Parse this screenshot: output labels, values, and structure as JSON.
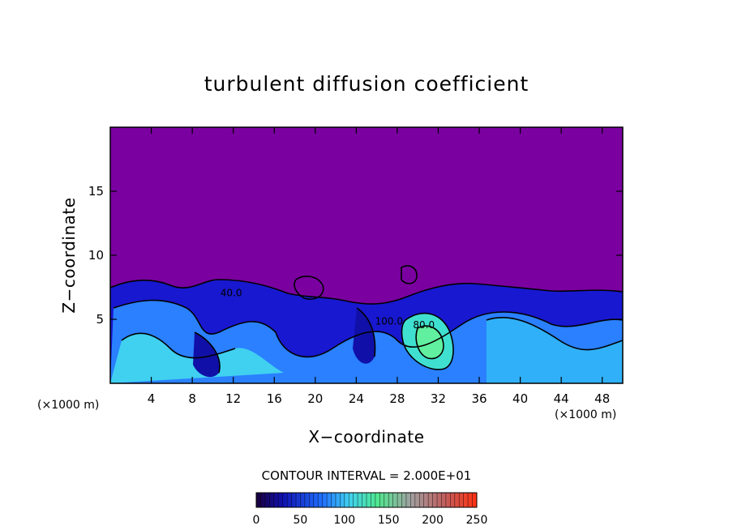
{
  "chart_data": {
    "type": "heatmap",
    "title": "turbulent diffusion coefficient",
    "xlabel": "X−coordinate",
    "ylabel": "Z−coordinate",
    "x_unit_left": "(×1000 m)",
    "x_unit_right": "(×1000 m)",
    "xlim": [
      0,
      50
    ],
    "ylim": [
      0,
      20
    ],
    "x_ticks": [
      4,
      8,
      12,
      16,
      20,
      24,
      28,
      32,
      36,
      40,
      44,
      48
    ],
    "x_tick_labels": [
      "4",
      "8",
      "12",
      "16",
      "20",
      "24",
      "28",
      "32",
      "36",
      "40",
      "44",
      "48"
    ],
    "y_ticks": [
      5,
      10,
      15
    ],
    "y_tick_labels": [
      "5",
      "10",
      "15"
    ],
    "contour_interval_text": "CONTOUR INTERVAL = 2.000E+01",
    "contour_interval": 20,
    "contour_labels": [
      {
        "text": "40.0",
        "x": 11.8,
        "z": 6.8
      },
      {
        "text": "100.0",
        "x": 27.2,
        "z": 4.6
      },
      {
        "text": "80.0",
        "x": 30.6,
        "z": 4.3
      }
    ],
    "colorbar": {
      "range": [
        0,
        250
      ],
      "tick_values": [
        0,
        50,
        100,
        150,
        200,
        250
      ],
      "tick_labels": [
        "0",
        "50",
        "100",
        "150",
        "200",
        "250"
      ]
    },
    "colors": {
      "background": "#7a00a0",
      "low": "#1010c0",
      "mid": "#2080ff",
      "cyan": "#40d8f0",
      "green": "#50e890"
    }
  }
}
